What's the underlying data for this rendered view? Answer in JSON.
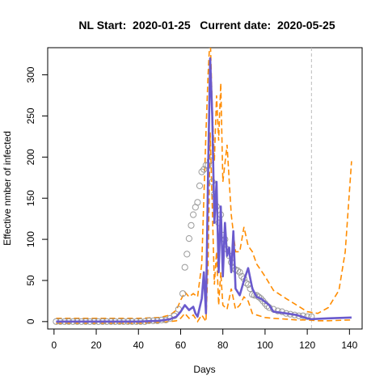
{
  "chart_data": {
    "type": "line",
    "title": "NL Start:  2020-01-25   Current date:  2020-05-25",
    "xlabel": "Days",
    "ylabel": "Effective nmber of infected",
    "xlim": [
      -3,
      146
    ],
    "ylim": [
      -9,
      333
    ],
    "x_ticks": [
      0,
      20,
      40,
      60,
      80,
      100,
      120,
      140
    ],
    "y_ticks": [
      0,
      50,
      100,
      150,
      200,
      250,
      300
    ],
    "current_day": 122,
    "grid": false,
    "legend": "none",
    "colors": {
      "estimate": "#6a5acd",
      "band": "#ff8c00",
      "observed": "#9a9a9a",
      "current_marker": "#bdbdbd"
    },
    "series": [
      {
        "role": "estimate",
        "x": [
          1,
          20,
          40,
          50,
          55,
          58,
          60,
          62,
          64,
          66,
          67,
          68,
          70,
          71,
          72,
          73,
          74,
          75,
          76,
          77,
          78,
          79,
          80,
          81,
          82,
          83,
          84,
          85,
          86,
          88,
          90,
          92,
          94,
          96,
          98,
          100,
          102,
          104,
          110,
          115,
          120,
          122,
          130,
          141
        ],
        "y": [
          0,
          0,
          0,
          1,
          3,
          6,
          12,
          20,
          14,
          18,
          10,
          6,
          28,
          60,
          10,
          180,
          320,
          250,
          120,
          170,
          60,
          140,
          55,
          120,
          80,
          90,
          60,
          110,
          40,
          32,
          50,
          65,
          40,
          30,
          28,
          24,
          20,
          12,
          10,
          8,
          4,
          3,
          4,
          5
        ]
      },
      {
        "role": "band-upper",
        "x": [
          1,
          20,
          40,
          50,
          55,
          58,
          60,
          62,
          64,
          66,
          68,
          70,
          72,
          73,
          74,
          75,
          76,
          77,
          78,
          79,
          80,
          82,
          84,
          86,
          88,
          90,
          92,
          94,
          96,
          100,
          104,
          110,
          115,
          120,
          125,
          130,
          135,
          138,
          141
        ],
        "y": [
          4,
          4,
          4,
          5,
          8,
          14,
          26,
          36,
          30,
          34,
          30,
          70,
          230,
          300,
          350,
          260,
          195,
          275,
          220,
          290,
          170,
          215,
          130,
          85,
          85,
          115,
          92,
          85,
          70,
          55,
          38,
          28,
          20,
          12,
          10,
          17,
          38,
          85,
          195
        ]
      },
      {
        "role": "band-lower",
        "x": [
          1,
          20,
          40,
          50,
          55,
          58,
          60,
          62,
          64,
          66,
          68,
          70,
          72,
          73,
          74,
          75,
          76,
          77,
          78,
          79,
          80,
          82,
          84,
          86,
          88,
          90,
          92,
          94,
          96,
          100,
          104,
          110,
          115,
          120,
          125,
          130,
          141
        ],
        "y": [
          -2,
          -2,
          -2,
          -1,
          0,
          1,
          4,
          10,
          4,
          8,
          0,
          8,
          0,
          70,
          230,
          140,
          45,
          85,
          20,
          60,
          20,
          15,
          40,
          15,
          20,
          30,
          25,
          10,
          8,
          5,
          4,
          3,
          2,
          2,
          1,
          1,
          2
        ]
      },
      {
        "role": "observed",
        "x": [
          1,
          3,
          5,
          7,
          9,
          11,
          13,
          15,
          17,
          19,
          21,
          23,
          25,
          27,
          29,
          31,
          33,
          35,
          37,
          39,
          41,
          43,
          45,
          47,
          49,
          51,
          53,
          55,
          57,
          59,
          61,
          62,
          63,
          64,
          65,
          66,
          67,
          68,
          69,
          70,
          71,
          72,
          73,
          74,
          75,
          76,
          77,
          78,
          79,
          80,
          81,
          82,
          83,
          84,
          85,
          86,
          87,
          88,
          89,
          90,
          91,
          92,
          93,
          94,
          95,
          96,
          97,
          98,
          99,
          100,
          101,
          102,
          104,
          106,
          108,
          110,
          112,
          114,
          116,
          118,
          120,
          122
        ],
        "y": [
          0,
          0,
          0,
          0,
          0,
          0,
          0,
          0,
          0,
          0,
          0,
          0,
          0,
          0,
          0,
          0,
          0,
          0,
          0,
          0,
          0,
          0,
          1,
          1,
          1,
          2,
          2,
          4,
          7,
          15,
          34,
          66,
          82,
          101,
          117,
          130,
          139,
          145,
          165,
          182,
          185,
          190,
          190,
          196,
          170,
          155,
          140,
          120,
          130,
          105,
          100,
          88,
          80,
          72,
          65,
          63,
          62,
          60,
          55,
          52,
          47,
          45,
          40,
          33,
          32,
          32,
          30,
          28,
          25,
          22,
          19,
          17,
          15,
          13,
          12,
          10,
          9,
          8,
          7,
          7,
          6,
          6
        ]
      }
    ]
  }
}
